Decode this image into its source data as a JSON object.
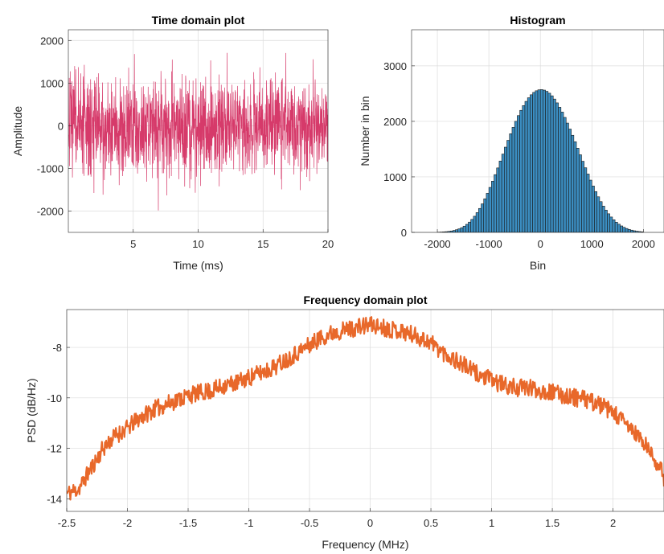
{
  "chart_data": [
    {
      "type": "line",
      "title": "Time domain plot",
      "xlabel": "Time (ms)",
      "ylabel": "Amplitude",
      "xlim": [
        0,
        20
      ],
      "ylim": [
        -2500,
        2250
      ],
      "xticks": [
        5,
        10,
        15,
        20
      ],
      "yticks": [
        -2000,
        -1000,
        0,
        1000,
        2000
      ],
      "grid": true,
      "color": "#D63A6A",
      "series": [
        {
          "description": "Dense Gaussian-like noise signal, bulk within about ±1300, occasional spikes to about ±2200",
          "sigma": 580,
          "peak_max": 2200,
          "peak_min": -2480,
          "samples": 1400
        }
      ]
    },
    {
      "type": "bar",
      "title": "Histogram",
      "xlabel": "Bin",
      "ylabel": "Number in bin",
      "xlim": [
        -2500,
        2400
      ],
      "ylim": [
        0,
        3650
      ],
      "xticks": [
        -2000,
        -1000,
        0,
        1000,
        2000
      ],
      "yticks": [
        0,
        1000,
        2000,
        3000
      ],
      "grid": true,
      "color": "#3B8EC2",
      "edge_color": "#1a1a1a",
      "bin_width": 50,
      "bin_centers": [
        -1975,
        -1925,
        -1875,
        -1825,
        -1775,
        -1725,
        -1675,
        -1625,
        -1575,
        -1525,
        -1475,
        -1425,
        -1375,
        -1325,
        -1275,
        -1225,
        -1175,
        -1125,
        -1075,
        -1025,
        -975,
        -925,
        -875,
        -825,
        -775,
        -725,
        -675,
        -625,
        -575,
        -525,
        -475,
        -425,
        -375,
        -325,
        -275,
        -225,
        -175,
        -125,
        -75,
        -25,
        25,
        75,
        125,
        175,
        225,
        275,
        325,
        375,
        425,
        475,
        525,
        575,
        625,
        675,
        725,
        775,
        825,
        875,
        925,
        975,
        1025,
        1075,
        1125,
        1175,
        1225,
        1275,
        1325,
        1375,
        1425,
        1475,
        1525,
        1575,
        1625,
        1675,
        1725,
        1775,
        1825,
        1875,
        1925,
        1975
      ],
      "values": [
        4,
        6,
        9,
        13,
        18,
        25,
        35,
        48,
        64,
        85,
        112,
        145,
        185,
        234,
        291,
        356,
        431,
        514,
        605,
        704,
        810,
        922,
        1040,
        1161,
        1285,
        1411,
        1535,
        1658,
        1777,
        1892,
        2001,
        2104,
        2198,
        2284,
        2360,
        2425,
        2479,
        2521,
        2551,
        2568,
        2572,
        2563,
        2541,
        2507,
        2460,
        2402,
        2333,
        2254,
        2167,
        2071,
        1969,
        1861,
        1749,
        1633,
        1516,
        1398,
        1281,
        1164,
        1051,
        941,
        835,
        735,
        641,
        554,
        473,
        400,
        335,
        277,
        227,
        184,
        147,
        116,
        91,
        70,
        53,
        40,
        29,
        21,
        15,
        10
      ]
    },
    {
      "type": "line",
      "title": "Frequency domain plot",
      "xlabel": "Frequency (MHz)",
      "ylabel": "PSD (dB/Hz)",
      "xlim": [
        -2.5,
        2.42
      ],
      "ylim": [
        -14.5,
        -6.5
      ],
      "xticks": [
        -2.5,
        -2,
        -1.5,
        -1,
        -0.5,
        0,
        0.5,
        1,
        1.5,
        2
      ],
      "xticklabels": [
        "-2.5",
        "-2",
        "-1.5",
        "-1",
        "-0.5",
        "0",
        "0.5",
        "1",
        "1.5",
        "2"
      ],
      "yticks": [
        -14,
        -12,
        -10,
        -8
      ],
      "grid": true,
      "color": "#E8682A",
      "series": [
        {
          "x": [
            -2.5,
            -2.4,
            -2.3,
            -2.2,
            -2.1,
            -2.0,
            -1.9,
            -1.8,
            -1.7,
            -1.6,
            -1.5,
            -1.4,
            -1.3,
            -1.2,
            -1.1,
            -1.0,
            -0.9,
            -0.8,
            -0.7,
            -0.6,
            -0.5,
            -0.4,
            -0.3,
            -0.2,
            -0.1,
            0.0,
            0.1,
            0.2,
            0.3,
            0.4,
            0.5,
            0.6,
            0.7,
            0.8,
            0.9,
            1.0,
            1.1,
            1.2,
            1.3,
            1.4,
            1.5,
            1.6,
            1.7,
            1.8,
            1.9,
            2.0,
            2.1,
            2.2,
            2.3,
            2.4,
            2.42
          ],
          "y": [
            -13.8,
            -13.6,
            -12.8,
            -12.0,
            -11.5,
            -11.2,
            -10.8,
            -10.5,
            -10.3,
            -10.1,
            -9.9,
            -9.8,
            -9.7,
            -9.5,
            -9.4,
            -9.2,
            -9.0,
            -8.8,
            -8.5,
            -8.2,
            -7.9,
            -7.6,
            -7.4,
            -7.3,
            -7.2,
            -7.1,
            -7.2,
            -7.3,
            -7.4,
            -7.6,
            -7.8,
            -8.2,
            -8.5,
            -8.8,
            -9.1,
            -9.3,
            -9.5,
            -9.6,
            -9.6,
            -9.7,
            -9.8,
            -9.9,
            -10.0,
            -10.1,
            -10.3,
            -10.6,
            -11.0,
            -11.5,
            -12.1,
            -12.9,
            -13.5
          ],
          "noise_db": 0.35
        }
      ]
    }
  ]
}
